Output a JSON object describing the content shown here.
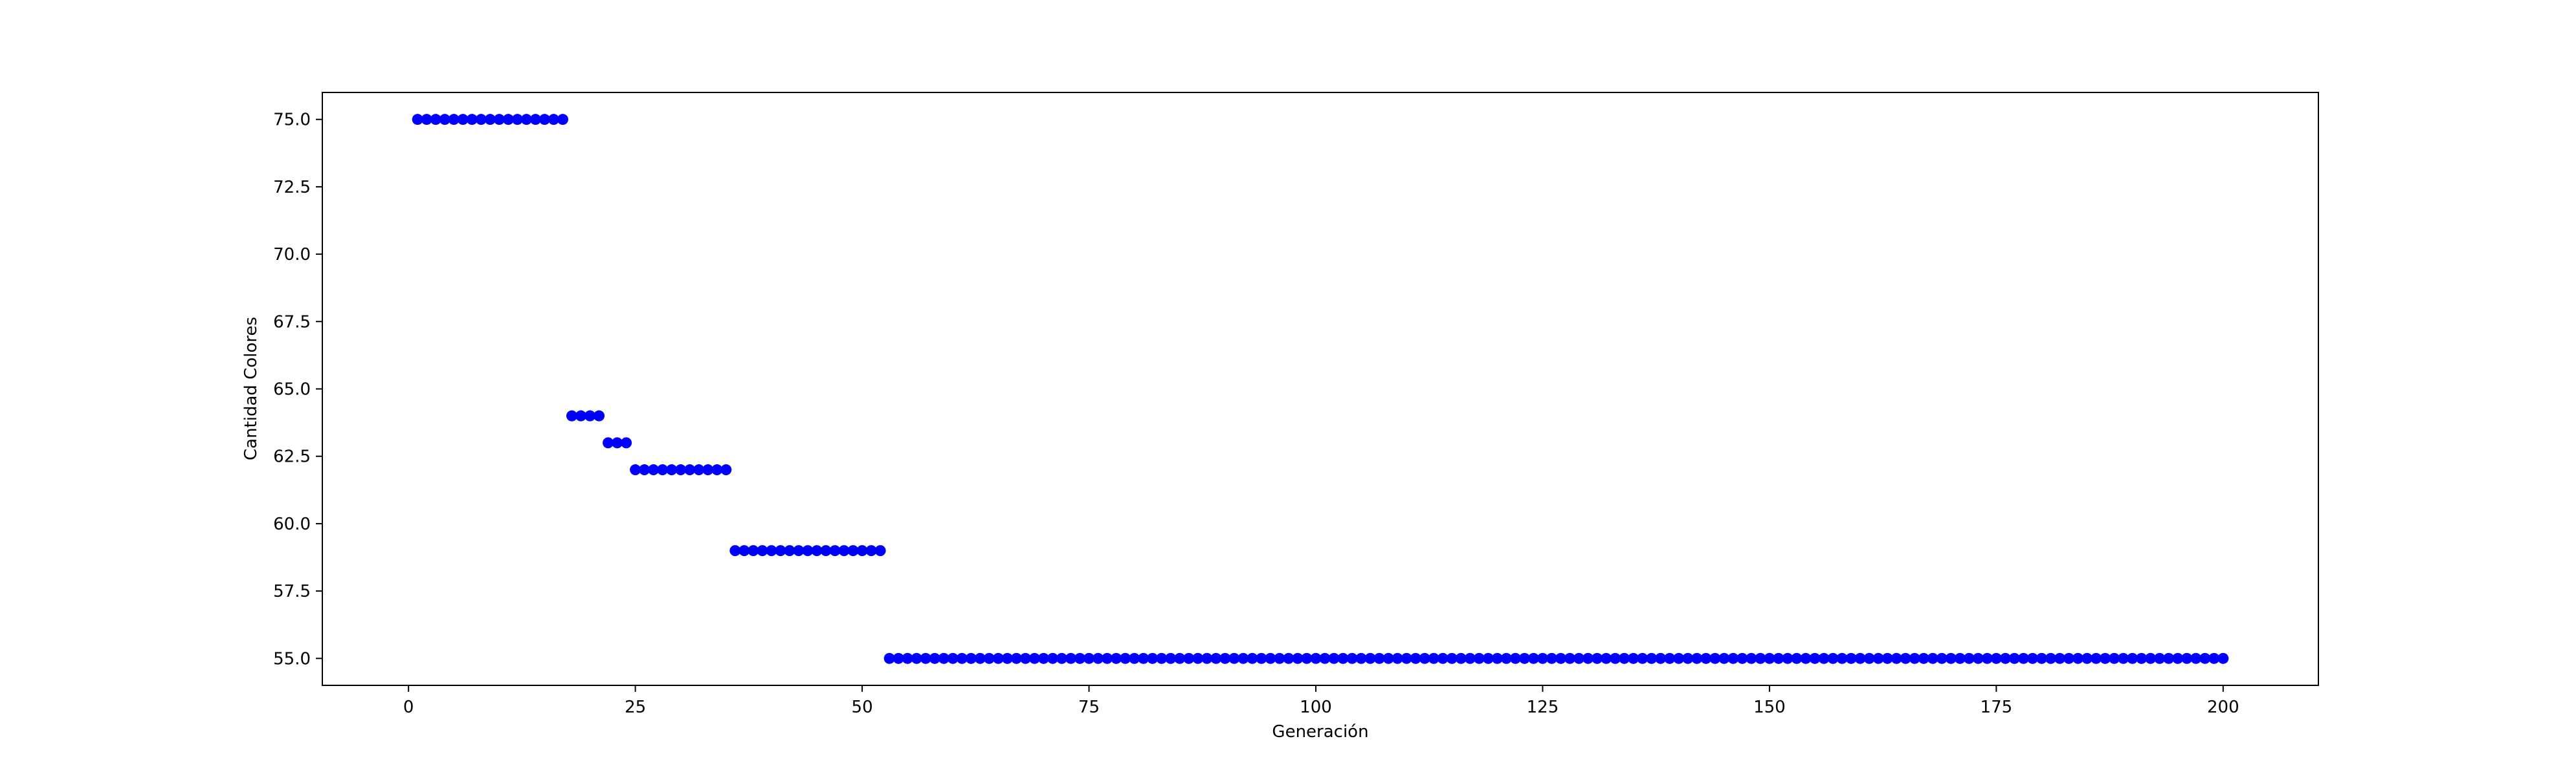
{
  "chart_data": {
    "type": "scatter",
    "title": "",
    "xlabel": "Generación",
    "ylabel": "Cantidad Colores",
    "xlim": [
      -9.5,
      210.5
    ],
    "ylim": [
      54.0,
      76.0
    ],
    "x_ticks": [
      0,
      25,
      50,
      75,
      100,
      125,
      150,
      175,
      200
    ],
    "x_tick_labels": [
      "0",
      "25",
      "50",
      "75",
      "100",
      "125",
      "150",
      "175",
      "200"
    ],
    "y_ticks": [
      55.0,
      57.5,
      60.0,
      62.5,
      65.0,
      67.5,
      70.0,
      72.5,
      75.0
    ],
    "y_tick_labels": [
      "55.0",
      "57.5",
      "60.0",
      "62.5",
      "65.0",
      "67.5",
      "70.0",
      "72.5",
      "75.0"
    ],
    "grid": false,
    "marker_color": "#0000ff",
    "marker": "circle",
    "segments": [
      {
        "x_start": 1,
        "x_end": 17,
        "y": 75
      },
      {
        "x_start": 18,
        "x_end": 21,
        "y": 64
      },
      {
        "x_start": 22,
        "x_end": 24,
        "y": 63
      },
      {
        "x_start": 25,
        "x_end": 35,
        "y": 62
      },
      {
        "x_start": 36,
        "x_end": 52,
        "y": 59
      },
      {
        "x_start": 53,
        "x_end": 200,
        "y": 55
      }
    ]
  }
}
